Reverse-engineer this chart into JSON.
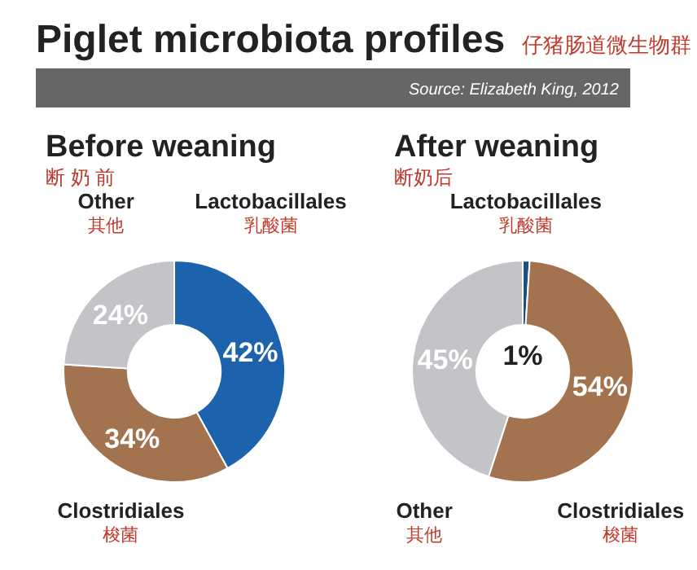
{
  "chart_data": [
    {
      "type": "donut",
      "title": "Piglet microbiota profiles 仔猪肠道微生物群",
      "subtitle": "Before weaning\n断 奶 前",
      "annotations": [
        "Source: Elizabeth King, 2012"
      ],
      "categories": [
        "Lactobacillales\n乳酸菌",
        "Clostridiales\n梭菌",
        "Other\n其他"
      ],
      "values": [
        42,
        34,
        24
      ],
      "colors": [
        "#1d62ad",
        "#a3724f",
        "#c4c4c8"
      ],
      "value_labels": [
        "42%",
        "34%",
        "24%"
      ]
    },
    {
      "type": "donut",
      "subtitle": "After weaning\n断奶后",
      "categories": [
        "Lactobacillales\n乳酸菌",
        "Clostridiales\n梭菌",
        "Other\n其他"
      ],
      "values": [
        1,
        54,
        45
      ],
      "colors": [
        "#1a4f86",
        "#a3724f",
        "#c4c4c8"
      ],
      "value_labels": [
        "1%",
        "54%",
        "45%"
      ]
    }
  ]
}
